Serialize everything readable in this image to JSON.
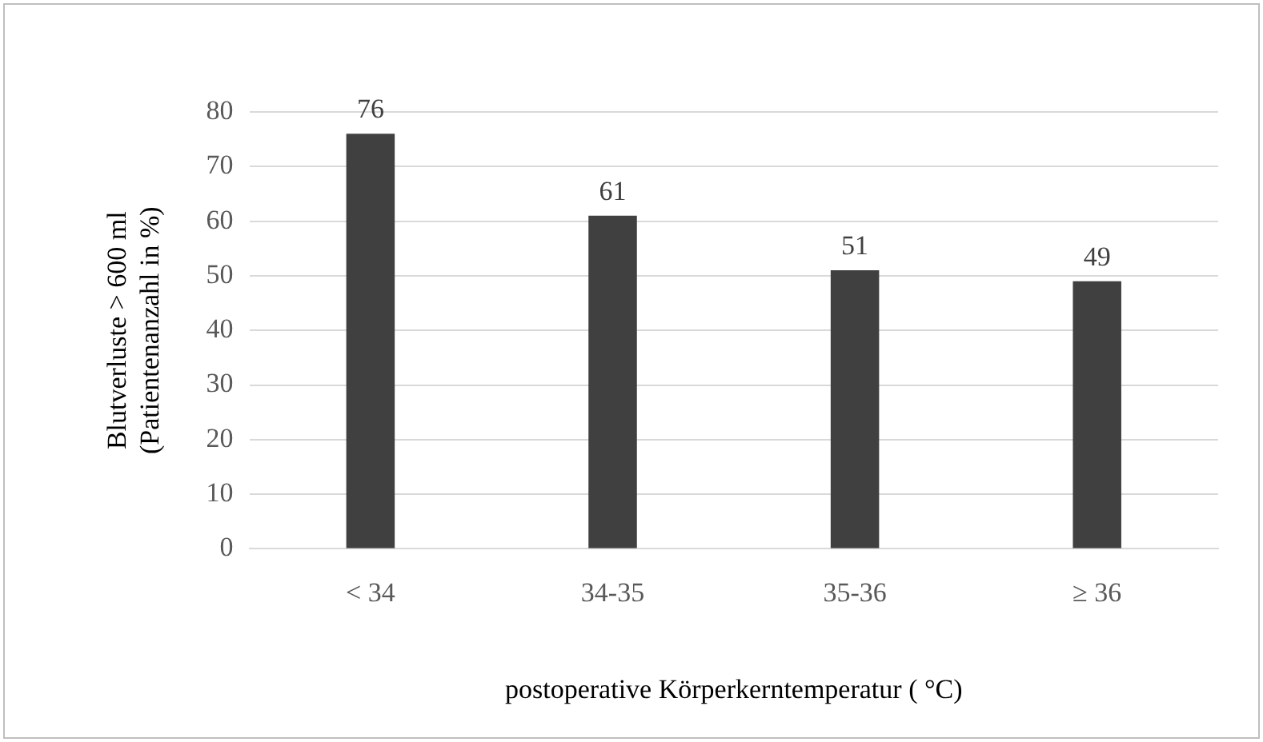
{
  "chart_data": {
    "type": "bar",
    "categories": [
      "< 34",
      "34-35",
      "35-36",
      "≥ 36"
    ],
    "values": [
      76,
      61,
      51,
      49
    ],
    "color": "#404040",
    "ylim": [
      0,
      80
    ],
    "yticks": [
      0,
      10,
      20,
      30,
      40,
      50,
      60,
      70,
      80
    ],
    "grid": "y",
    "data_labels": true,
    "ylabel": "Blutverluste > 600 ml\n(Patientenanzahl in %)",
    "xlabel": "postoperative Körperkerntemperatur ( °C)"
  }
}
